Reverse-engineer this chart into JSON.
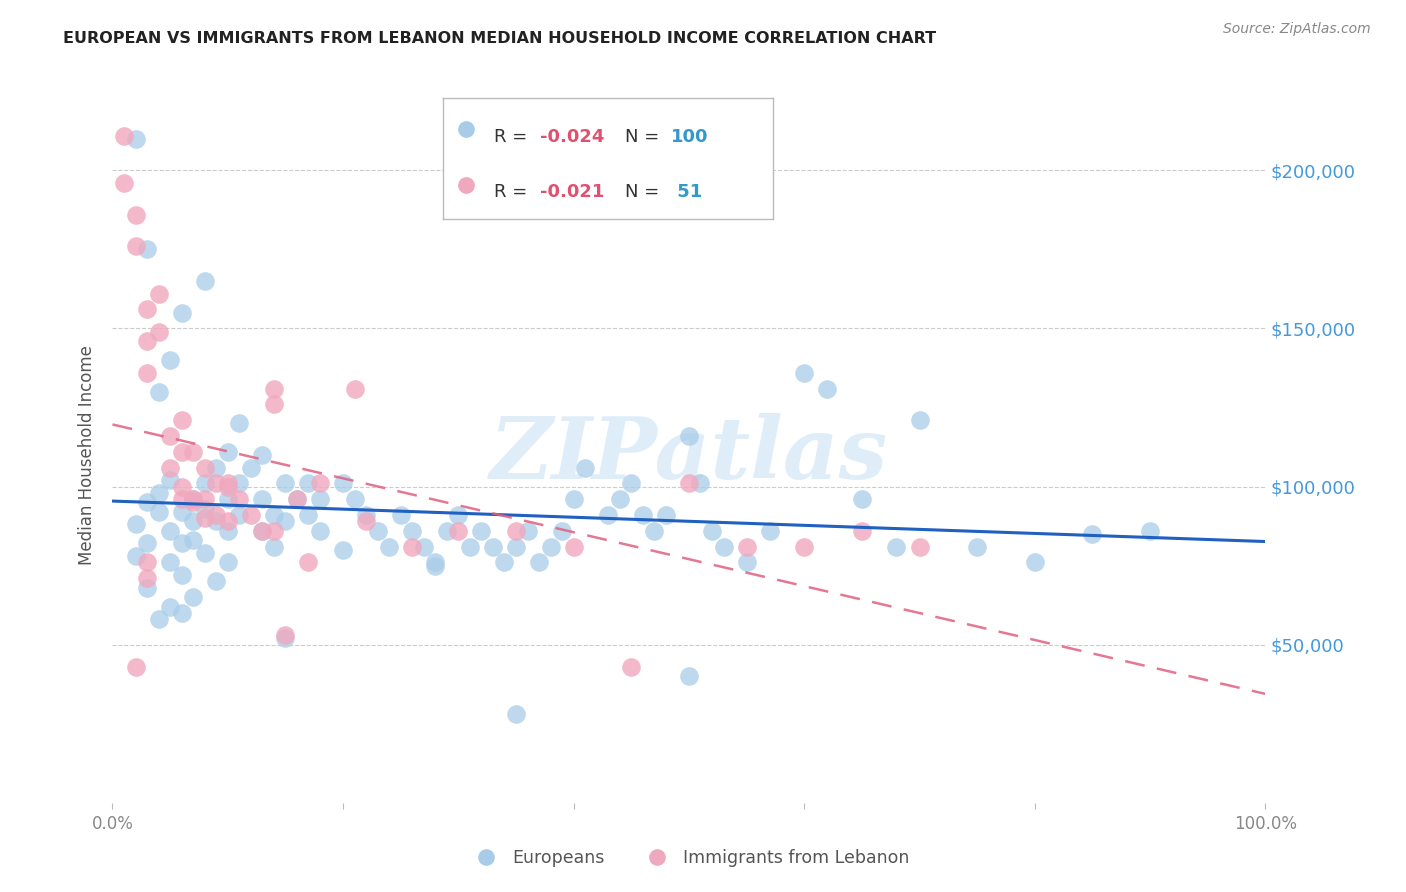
{
  "title": "EUROPEAN VS IMMIGRANTS FROM LEBANON MEDIAN HOUSEHOLD INCOME CORRELATION CHART",
  "source": "Source: ZipAtlas.com",
  "ylabel": "Median Household Income",
  "ytick_labels": [
    "$50,000",
    "$100,000",
    "$150,000",
    "$200,000"
  ],
  "ytick_values": [
    50000,
    100000,
    150000,
    200000
  ],
  "ylim": [
    0,
    220000
  ],
  "xlim": [
    0.0,
    1.0
  ],
  "watermark": "ZIPatlas",
  "blue_scatter": "#a8cce8",
  "pink_scatter": "#f0a8be",
  "blue_line_color": "#2060c0",
  "pink_line_color": "#e06080",
  "grid_color": "#cccccc",
  "right_tick_color": "#4499dd",
  "eu_R": "-0.024",
  "eu_N": "100",
  "lb_R": "-0.021",
  "lb_N": " 51",
  "europeans_x": [
    0.02,
    0.02,
    0.03,
    0.03,
    0.04,
    0.04,
    0.05,
    0.05,
    0.05,
    0.06,
    0.06,
    0.06,
    0.07,
    0.07,
    0.07,
    0.08,
    0.08,
    0.08,
    0.09,
    0.09,
    0.1,
    0.1,
    0.1,
    0.1,
    0.11,
    0.11,
    0.12,
    0.13,
    0.13,
    0.14,
    0.14,
    0.15,
    0.15,
    0.16,
    0.17,
    0.17,
    0.18,
    0.18,
    0.2,
    0.21,
    0.22,
    0.23,
    0.24,
    0.25,
    0.26,
    0.27,
    0.28,
    0.29,
    0.3,
    0.31,
    0.32,
    0.33,
    0.34,
    0.35,
    0.36,
    0.37,
    0.38,
    0.39,
    0.4,
    0.41,
    0.43,
    0.44,
    0.45,
    0.46,
    0.47,
    0.48,
    0.5,
    0.51,
    0.52,
    0.53,
    0.55,
    0.57,
    0.6,
    0.62,
    0.65,
    0.68,
    0.7,
    0.75,
    0.8,
    0.85,
    0.9,
    0.35,
    0.5,
    0.28,
    0.2,
    0.15,
    0.08,
    0.06,
    0.05,
    0.04,
    0.03,
    0.02,
    0.11,
    0.13,
    0.09,
    0.07,
    0.06,
    0.05,
    0.04,
    0.03
  ],
  "europeans_y": [
    88000,
    78000,
    82000,
    95000,
    92000,
    98000,
    102000,
    86000,
    76000,
    92000,
    82000,
    72000,
    96000,
    89000,
    83000,
    101000,
    93000,
    79000,
    106000,
    89000,
    111000,
    96000,
    86000,
    76000,
    101000,
    91000,
    106000,
    96000,
    86000,
    91000,
    81000,
    101000,
    89000,
    96000,
    101000,
    91000,
    96000,
    86000,
    101000,
    96000,
    91000,
    86000,
    81000,
    91000,
    86000,
    81000,
    76000,
    86000,
    91000,
    81000,
    86000,
    81000,
    76000,
    81000,
    86000,
    76000,
    81000,
    86000,
    96000,
    106000,
    91000,
    96000,
    101000,
    91000,
    86000,
    91000,
    116000,
    101000,
    86000,
    81000,
    76000,
    86000,
    136000,
    131000,
    96000,
    81000,
    121000,
    81000,
    76000,
    85000,
    86000,
    28000,
    40000,
    75000,
    80000,
    52000,
    165000,
    155000,
    140000,
    130000,
    175000,
    210000,
    120000,
    110000,
    70000,
    65000,
    60000,
    62000,
    58000,
    68000
  ],
  "lebanon_x": [
    0.01,
    0.01,
    0.02,
    0.02,
    0.02,
    0.03,
    0.03,
    0.03,
    0.04,
    0.04,
    0.05,
    0.05,
    0.06,
    0.06,
    0.06,
    0.07,
    0.07,
    0.08,
    0.08,
    0.09,
    0.09,
    0.1,
    0.1,
    0.11,
    0.12,
    0.13,
    0.14,
    0.14,
    0.14,
    0.15,
    0.16,
    0.17,
    0.18,
    0.21,
    0.22,
    0.26,
    0.3,
    0.35,
    0.4,
    0.45,
    0.5,
    0.55,
    0.6,
    0.65,
    0.7,
    0.03,
    0.03,
    0.06,
    0.07,
    0.08,
    0.1
  ],
  "lebanon_y": [
    211000,
    196000,
    186000,
    176000,
    43000,
    156000,
    146000,
    136000,
    161000,
    149000,
    116000,
    106000,
    121000,
    111000,
    96000,
    111000,
    96000,
    106000,
    96000,
    101000,
    91000,
    101000,
    89000,
    96000,
    91000,
    86000,
    131000,
    126000,
    86000,
    53000,
    96000,
    76000,
    101000,
    131000,
    89000,
    81000,
    86000,
    86000,
    81000,
    43000,
    101000,
    81000,
    81000,
    86000,
    81000,
    76000,
    71000,
    100000,
    95000,
    90000,
    100000
  ]
}
